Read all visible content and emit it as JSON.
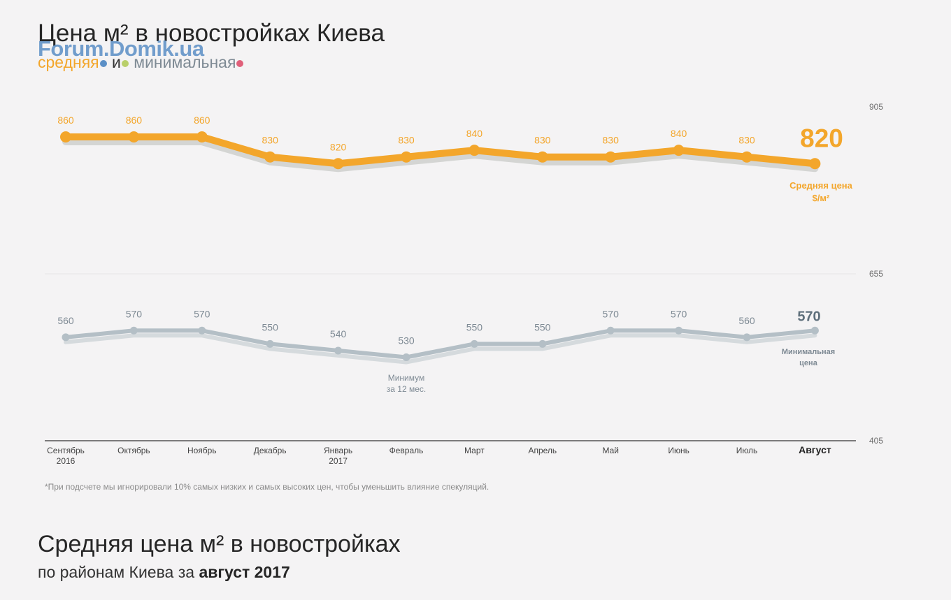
{
  "header": {
    "title": "Цена м² в новостройках Киева",
    "watermark": "Forum.Domik.ua",
    "subtitle_avg": "средняя",
    "subtitle_and": "и",
    "subtitle_min": "минимальная"
  },
  "colors": {
    "avg": "#f3a62b",
    "avg_shadow": "#d4d5d3",
    "min": "#b4bfc6",
    "min_shadow": "#d5dadd",
    "legend_dot_1": "#5b8fc6",
    "legend_dot_2": "#b9cf6a",
    "legend_dot_3": "#e0607a"
  },
  "chart_data": {
    "type": "line",
    "categories": [
      "Сентябрь 2016",
      "Октябрь",
      "Ноябрь",
      "Декабрь",
      "Январь 2017",
      "Февраль",
      "Март",
      "Апрель",
      "Май",
      "Июнь",
      "Июль",
      "Август"
    ],
    "category_lines": [
      [
        "Сентябрь",
        "2016"
      ],
      [
        "Октябрь"
      ],
      [
        "Ноябрь"
      ],
      [
        "Декабрь"
      ],
      [
        "Январь",
        "2017"
      ],
      [
        "Февраль"
      ],
      [
        "Март"
      ],
      [
        "Апрель"
      ],
      [
        "Май"
      ],
      [
        "Июнь"
      ],
      [
        "Июль"
      ],
      [
        "Август"
      ]
    ],
    "series": [
      {
        "name": "Средняя цена $/м²",
        "values": [
          860,
          860,
          860,
          830,
          820,
          830,
          840,
          830,
          830,
          840,
          830,
          820
        ]
      },
      {
        "name": "Минимальная цена",
        "values": [
          560,
          570,
          570,
          550,
          540,
          530,
          550,
          550,
          570,
          570,
          560,
          570
        ]
      }
    ],
    "ylim": [
      405,
      905
    ],
    "yticks": [
      905,
      655,
      405
    ],
    "highlight_category": "Август",
    "end_label_avg": [
      "Средняя цена",
      "$/м²"
    ],
    "end_label_min": [
      "Минимальная",
      "цена"
    ],
    "annotation_min": [
      "Минимум",
      "за 12 мес."
    ]
  },
  "footnote": "*При подсчете мы игнорировали 10% самых низких и самых высоких цен, чтобы уменьшить влияние спекуляций.",
  "section2": {
    "title": "Средняя цена м² в новостройках",
    "subtitle_prefix": "по районам Киева за",
    "subtitle_bold": "август 2017"
  }
}
